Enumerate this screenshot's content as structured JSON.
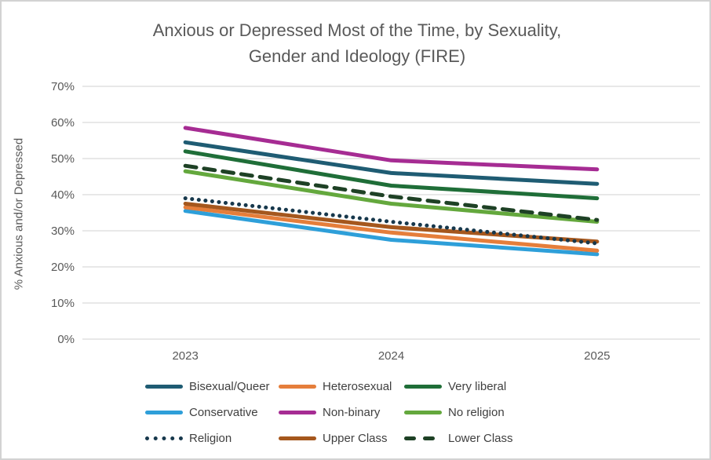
{
  "chart_data": {
    "type": "line",
    "title": "Anxious or Depressed Most of the Time, by Sexuality, Gender and Ideology (FIRE)",
    "title_lines": [
      "Anxious or Depressed Most of the Time, by Sexuality,",
      "Gender and Ideology (FIRE)"
    ],
    "ylabel": "% Anxious and/or Depressed",
    "xlabel": "",
    "categories": [
      "2023",
      "2024",
      "2025"
    ],
    "ylim": [
      0,
      70
    ],
    "ytick_step": 10,
    "ytick_suffix": "%",
    "grid": true,
    "legend_position": "bottom",
    "series": [
      {
        "name": "Bisexual/Queer",
        "color": "#1F5C73",
        "style": "solid",
        "values": [
          54.5,
          46.0,
          43.0
        ]
      },
      {
        "name": "Heterosexual",
        "color": "#E57E3B",
        "style": "solid",
        "values": [
          36.5,
          29.5,
          24.5
        ]
      },
      {
        "name": "Very liberal",
        "color": "#1F6E38",
        "style": "solid",
        "values": [
          52.0,
          42.5,
          39.0
        ]
      },
      {
        "name": "Conservative",
        "color": "#2E9FD9",
        "style": "solid",
        "values": [
          35.5,
          27.5,
          23.5
        ]
      },
      {
        "name": "Non-binary",
        "color": "#A62C93",
        "style": "solid",
        "values": [
          58.5,
          49.5,
          47.0
        ]
      },
      {
        "name": "No religion",
        "color": "#64A83D",
        "style": "solid",
        "values": [
          46.5,
          37.5,
          32.5
        ]
      },
      {
        "name": "Religion",
        "color": "#17384C",
        "style": "dotted",
        "values": [
          39.0,
          32.5,
          26.5
        ]
      },
      {
        "name": "Upper Class",
        "color": "#A5571D",
        "style": "solid",
        "values": [
          37.5,
          31.0,
          27.0
        ]
      },
      {
        "name": "Lower Class",
        "color": "#1E4125",
        "style": "dashed",
        "values": [
          48.0,
          39.5,
          33.0
        ]
      }
    ],
    "draw_order": [
      "Conservative",
      "Heterosexual",
      "Upper Class",
      "Religion",
      "No religion",
      "Very liberal",
      "Lower Class",
      "Bisexual/Queer",
      "Non-binary"
    ]
  },
  "colors": {
    "grid": "#d9d9d9",
    "axis_text": "#595959",
    "title_text": "#595959",
    "legend_text": "#3f3f3f",
    "border": "#d2d2d2",
    "background": "#ffffff"
  }
}
